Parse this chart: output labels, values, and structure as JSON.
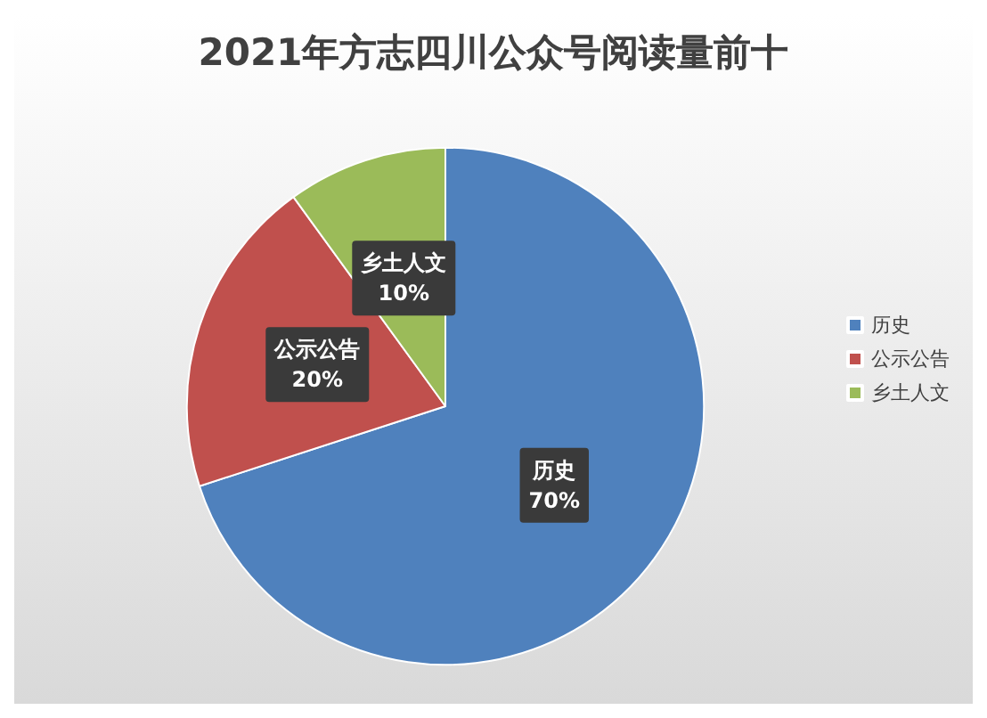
{
  "chart_data": {
    "type": "pie",
    "title": "2021年方志四川公众号阅读量前十",
    "categories": [
      "历史",
      "公示公告",
      "乡土人文"
    ],
    "values": [
      70,
      20,
      10
    ],
    "value_labels": [
      "70%",
      "20%",
      "10%"
    ],
    "colors": [
      "#4f81bd",
      "#c0504d",
      "#9bbb59"
    ],
    "legend": "right"
  }
}
